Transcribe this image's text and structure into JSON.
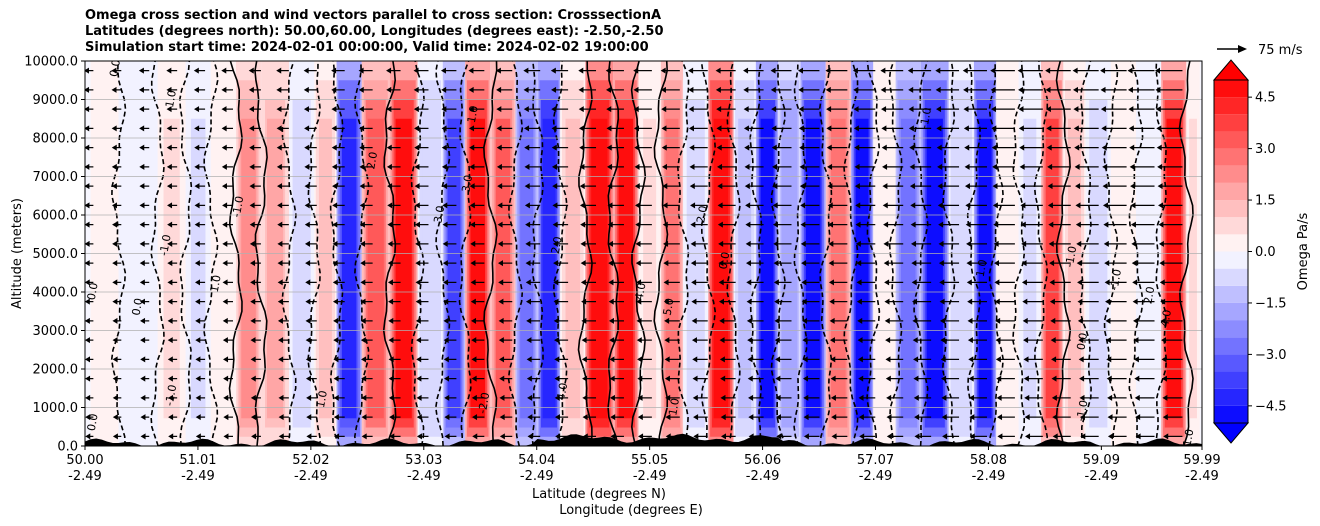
{
  "chart_data": {
    "type": "heatmap",
    "title_lines": [
      "Omega cross section and wind vectors parallel to cross section: CrosssectionA",
      "Latitudes (degrees north): 50.00,60.00, Longitudes (degrees east): -2.50,-2.50",
      "Simulation start time: 2024-02-01 00:00:00, Valid time: 2024-02-02 19:00:00"
    ],
    "ylabel": "Altitude (meters)",
    "xlabel_lines": [
      "Latitude (degrees N)",
      "Longitude (degrees E)"
    ],
    "ylim": [
      0,
      10000
    ],
    "y_ticks": [
      0,
      1000,
      2000,
      3000,
      4000,
      5000,
      6000,
      7000,
      8000,
      9000,
      10000
    ],
    "y_tick_labels": [
      "0.0",
      "1000.0",
      "2000.0",
      "3000.0",
      "4000.0",
      "5000.0",
      "6000.0",
      "7000.0",
      "8000.0",
      "9000.0",
      "10000.0"
    ],
    "xlim": [
      50.0,
      59.99
    ],
    "x_ticks": [
      {
        "lat": "50.00",
        "lon": "-2.49"
      },
      {
        "lat": "51.01",
        "lon": "-2.49"
      },
      {
        "lat": "52.02",
        "lon": "-2.49"
      },
      {
        "lat": "53.03",
        "lon": "-2.49"
      },
      {
        "lat": "54.04",
        "lon": "-2.49"
      },
      {
        "lat": "55.05",
        "lon": "-2.49"
      },
      {
        "lat": "56.06",
        "lon": "-2.49"
      },
      {
        "lat": "57.07",
        "lon": "-2.49"
      },
      {
        "lat": "58.08",
        "lon": "-2.49"
      },
      {
        "lat": "59.09",
        "lon": "-2.49"
      },
      {
        "lat": "59.99",
        "lon": "-2.49"
      }
    ],
    "colorbar": {
      "label": "Omega Pa/s",
      "vmin": -5,
      "vmax": 5,
      "levels": [
        -5,
        -4.5,
        -4,
        -3.5,
        -3,
        -2.5,
        -2,
        -1.5,
        -1,
        -0.5,
        0,
        0.5,
        1,
        1.5,
        2,
        2.5,
        3,
        3.5,
        4,
        4.5,
        5
      ],
      "ticks": [
        -4.5,
        -3.0,
        -1.5,
        0.0,
        1.5,
        3.0,
        4.5
      ],
      "tick_labels": [
        "−4.5",
        "−3.0",
        "−1.5",
        "0.0",
        "1.5",
        "3.0",
        "4.5"
      ],
      "negative_color": "#0000ff",
      "positive_color": "#ff0000",
      "neutral_color": "#ffffff"
    },
    "quiver_key": {
      "label": "75 m/s",
      "speed": 75
    },
    "omega_columns": [
      {
        "lat": 50.1,
        "omega": 0.3
      },
      {
        "lat": 50.5,
        "omega": -0.4
      },
      {
        "lat": 50.8,
        "omega": 0.6
      },
      {
        "lat": 51.0,
        "omega": -0.6
      },
      {
        "lat": 51.25,
        "omega": 0.4
      },
      {
        "lat": 51.45,
        "omega": 2.4
      },
      {
        "lat": 51.7,
        "omega": 1.6
      },
      {
        "lat": 51.95,
        "omega": -0.8
      },
      {
        "lat": 52.15,
        "omega": 1.0
      },
      {
        "lat": 52.35,
        "omega": -4.2
      },
      {
        "lat": 52.6,
        "omega": 3.2
      },
      {
        "lat": 52.85,
        "omega": 4.8
      },
      {
        "lat": 53.1,
        "omega": -1.0
      },
      {
        "lat": 53.3,
        "omega": -3.6
      },
      {
        "lat": 53.5,
        "omega": 4.6
      },
      {
        "lat": 53.75,
        "omega": 3.0
      },
      {
        "lat": 53.95,
        "omega": -2.6
      },
      {
        "lat": 54.15,
        "omega": -4.5
      },
      {
        "lat": 54.35,
        "omega": 1.2
      },
      {
        "lat": 54.6,
        "omega": 5.0
      },
      {
        "lat": 54.85,
        "omega": 4.5
      },
      {
        "lat": 55.05,
        "omega": 0.6
      },
      {
        "lat": 55.25,
        "omega": 2.6
      },
      {
        "lat": 55.45,
        "omega": -0.8
      },
      {
        "lat": 55.7,
        "omega": 5.0
      },
      {
        "lat": 55.9,
        "omega": -1.2
      },
      {
        "lat": 56.1,
        "omega": -5.0
      },
      {
        "lat": 56.3,
        "omega": -2.0
      },
      {
        "lat": 56.5,
        "omega": -5.0
      },
      {
        "lat": 56.75,
        "omega": 2.8
      },
      {
        "lat": 56.95,
        "omega": -5.0
      },
      {
        "lat": 57.15,
        "omega": 0.4
      },
      {
        "lat": 57.35,
        "omega": -2.6
      },
      {
        "lat": 57.6,
        "omega": -5.0
      },
      {
        "lat": 57.85,
        "omega": -1.0
      },
      {
        "lat": 58.05,
        "omega": -5.0
      },
      {
        "lat": 58.25,
        "omega": 0.2
      },
      {
        "lat": 58.45,
        "omega": -0.6
      },
      {
        "lat": 58.65,
        "omega": 3.6
      },
      {
        "lat": 58.85,
        "omega": 1.2
      },
      {
        "lat": 59.05,
        "omega": -0.8
      },
      {
        "lat": 59.3,
        "omega": 0.0
      },
      {
        "lat": 59.5,
        "omega": -0.5
      },
      {
        "lat": 59.75,
        "omega": 4.8
      },
      {
        "lat": 59.95,
        "omega": 0.6
      }
    ],
    "contour_labels": [
      {
        "lat": 50.3,
        "alt": 9800,
        "text": "0.0"
      },
      {
        "lat": 50.8,
        "alt": 9000,
        "text": "1.0"
      },
      {
        "lat": 53.5,
        "alt": 8600,
        "text": "1.0"
      },
      {
        "lat": 51.2,
        "alt": 4200,
        "text": "1.0"
      },
      {
        "lat": 51.4,
        "alt": 6200,
        "text": "-1.0"
      },
      {
        "lat": 50.75,
        "alt": 5200,
        "text": "-1.0"
      },
      {
        "lat": 52.6,
        "alt": 7400,
        "text": "2.0"
      },
      {
        "lat": 53.2,
        "alt": 6000,
        "text": "3.0"
      },
      {
        "lat": 53.45,
        "alt": 6800,
        "text": "3.0"
      },
      {
        "lat": 54.25,
        "alt": 5200,
        "text": "2.0"
      },
      {
        "lat": 55.0,
        "alt": 4000,
        "text": "4.0"
      },
      {
        "lat": 55.25,
        "alt": 3600,
        "text": "5.0"
      },
      {
        "lat": 55.55,
        "alt": 6000,
        "text": "2.0"
      },
      {
        "lat": 55.75,
        "alt": 4800,
        "text": "0.0"
      },
      {
        "lat": 50.1,
        "alt": 4000,
        "text": "0.0"
      },
      {
        "lat": 50.5,
        "alt": 3600,
        "text": "0.0"
      },
      {
        "lat": 50.8,
        "alt": 1300,
        "text": "-1.0"
      },
      {
        "lat": 50.1,
        "alt": 600,
        "text": "0.0"
      },
      {
        "lat": 52.15,
        "alt": 1200,
        "text": "1.0"
      },
      {
        "lat": 53.6,
        "alt": 1100,
        "text": "-2.0"
      },
      {
        "lat": 54.3,
        "alt": 1400,
        "text": "4.0"
      },
      {
        "lat": 55.3,
        "alt": 1000,
        "text": "1.0"
      },
      {
        "lat": 58.05,
        "alt": 4600,
        "text": "1.0"
      },
      {
        "lat": 58.85,
        "alt": 4900,
        "text": "-1.0"
      },
      {
        "lat": 59.25,
        "alt": 4300,
        "text": "-1.0"
      },
      {
        "lat": 59.55,
        "alt": 3900,
        "text": "2.0"
      },
      {
        "lat": 59.7,
        "alt": 3300,
        "text": "4.0"
      },
      {
        "lat": 58.95,
        "alt": 2700,
        "text": "0.0"
      },
      {
        "lat": 58.95,
        "alt": 900,
        "text": "-1.0"
      },
      {
        "lat": 59.9,
        "alt": 200,
        "text": "1.0"
      },
      {
        "lat": 57.55,
        "alt": 8500,
        "text": "-1.0"
      }
    ]
  }
}
